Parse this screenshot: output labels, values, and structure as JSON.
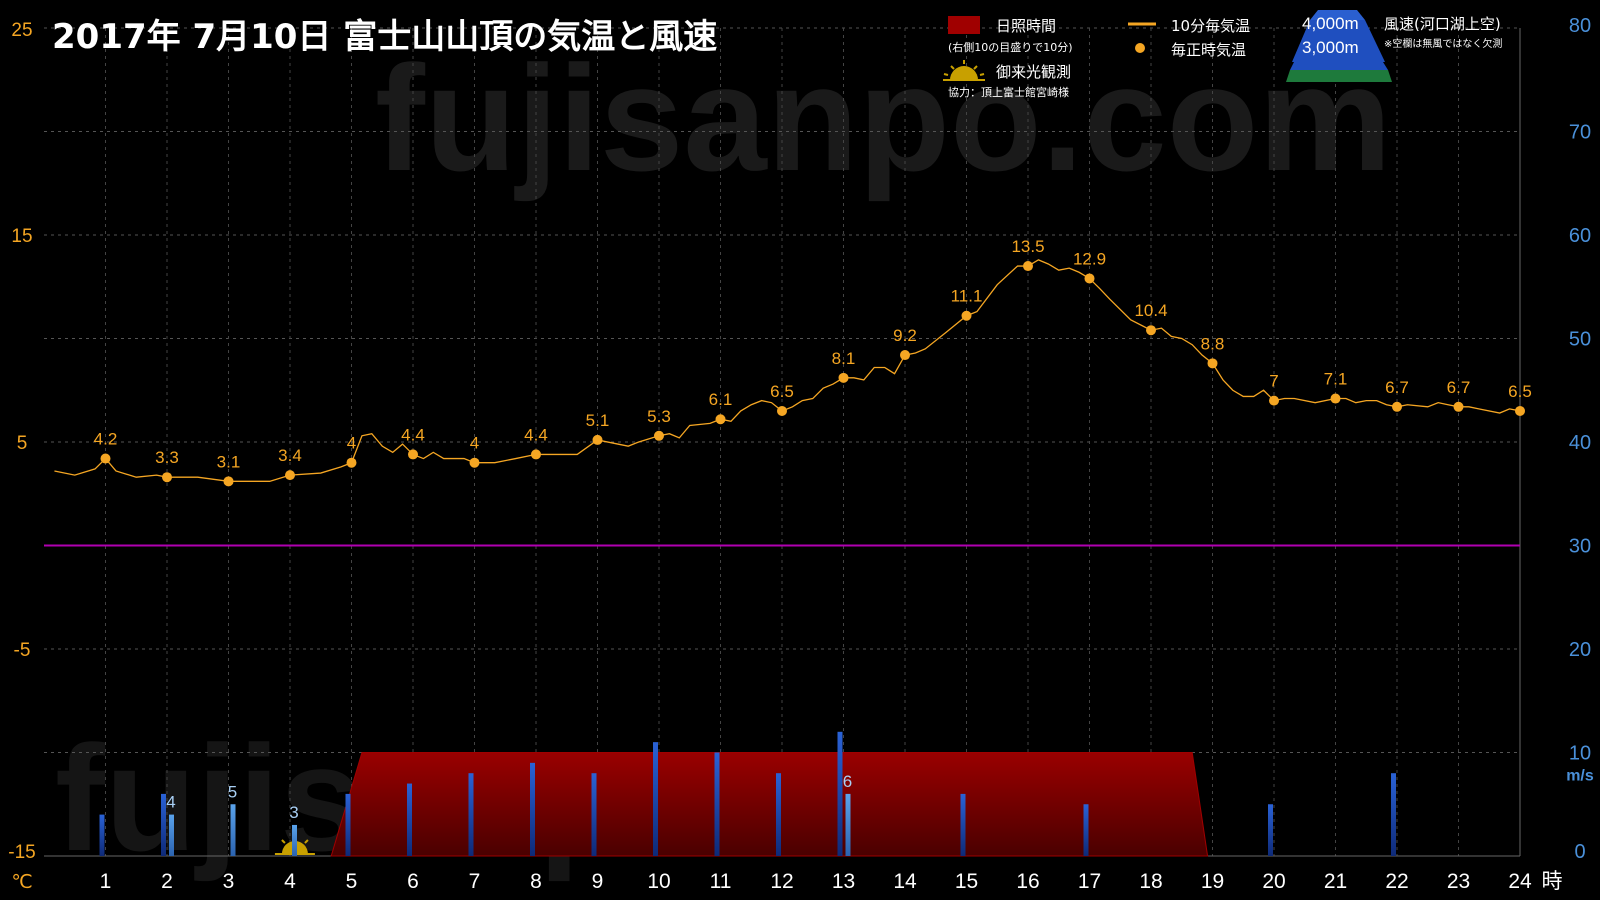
{
  "chart_data": {
    "type": "line",
    "title": "2017年  7月10日   富士山山頂の気温と風速",
    "watermark": "fujisanpo.com",
    "x_unit": "時",
    "x_ticks": [
      "1",
      "2",
      "3",
      "4",
      "5",
      "6",
      "7",
      "8",
      "9",
      "10",
      "11",
      "12",
      "13",
      "14",
      "15",
      "16",
      "17",
      "18",
      "19",
      "20",
      "21",
      "22",
      "23",
      "24"
    ],
    "y_left": {
      "unit": "℃",
      "range": [
        -15,
        25
      ],
      "ticks": [
        "25",
        "15",
        "5",
        "-5",
        "-15"
      ]
    },
    "y_right": {
      "unit": "m/s",
      "range": [
        0,
        80
      ],
      "ticks": [
        "80",
        "70",
        "60",
        "50",
        "40",
        "30",
        "20",
        "10",
        "0"
      ]
    },
    "zero_line": 0,
    "temperature_hourly": {
      "name": "毎正時気温",
      "x": [
        1,
        2,
        3,
        4,
        5,
        6,
        7,
        8,
        9,
        10,
        11,
        12,
        13,
        14,
        15,
        16,
        17,
        18,
        19,
        20,
        21,
        22,
        23,
        24
      ],
      "values": [
        4.2,
        3.3,
        3.1,
        3.4,
        4,
        4.4,
        4,
        4.4,
        5.1,
        5.3,
        6.1,
        6.5,
        8.1,
        9.2,
        11.1,
        13.5,
        12.9,
        10.4,
        8.8,
        7,
        7.1,
        6.7,
        6.7,
        6.5
      ],
      "labels": [
        "4.2",
        "3.3",
        "3.1",
        "3.4",
        "4",
        "4.4",
        "4",
        "4.4",
        "5.1",
        "5.3",
        "6.1",
        "6.5",
        "8.1",
        "9.2",
        "11.1",
        "13.5",
        "12.9",
        "10.4",
        "8.8",
        "7",
        "7.1",
        "6.7",
        "6.7",
        "6.5"
      ]
    },
    "temperature_10min": {
      "name": "10分毎気温",
      "points": [
        [
          0.17,
          3.6
        ],
        [
          0.5,
          3.4
        ],
        [
          0.83,
          3.7
        ],
        [
          1.0,
          4.2
        ],
        [
          1.17,
          3.6
        ],
        [
          1.5,
          3.3
        ],
        [
          1.83,
          3.4
        ],
        [
          2.0,
          3.3
        ],
        [
          2.5,
          3.3
        ],
        [
          3.0,
          3.1
        ],
        [
          3.5,
          3.1
        ],
        [
          3.67,
          3.1
        ],
        [
          4.0,
          3.4
        ],
        [
          4.5,
          3.5
        ],
        [
          4.83,
          3.8
        ],
        [
          5.0,
          4.0
        ],
        [
          5.17,
          5.3
        ],
        [
          5.33,
          5.4
        ],
        [
          5.5,
          4.8
        ],
        [
          5.67,
          4.5
        ],
        [
          5.83,
          4.9
        ],
        [
          6.0,
          4.4
        ],
        [
          6.17,
          4.2
        ],
        [
          6.33,
          4.5
        ],
        [
          6.5,
          4.2
        ],
        [
          6.83,
          4.2
        ],
        [
          7.0,
          4.0
        ],
        [
          7.33,
          4.0
        ],
        [
          7.67,
          4.2
        ],
        [
          8.0,
          4.4
        ],
        [
          8.33,
          4.4
        ],
        [
          8.67,
          4.4
        ],
        [
          9.0,
          5.1
        ],
        [
          9.33,
          4.9
        ],
        [
          9.5,
          4.8
        ],
        [
          9.67,
          5.0
        ],
        [
          10.0,
          5.3
        ],
        [
          10.17,
          5.4
        ],
        [
          10.33,
          5.2
        ],
        [
          10.5,
          5.8
        ],
        [
          10.83,
          5.9
        ],
        [
          11.0,
          6.1
        ],
        [
          11.17,
          6.0
        ],
        [
          11.33,
          6.5
        ],
        [
          11.5,
          6.8
        ],
        [
          11.67,
          7.0
        ],
        [
          11.83,
          6.9
        ],
        [
          12.0,
          6.5
        ],
        [
          12.17,
          6.7
        ],
        [
          12.33,
          7.0
        ],
        [
          12.5,
          7.1
        ],
        [
          12.67,
          7.6
        ],
        [
          12.83,
          7.8
        ],
        [
          13.0,
          8.1
        ],
        [
          13.17,
          8.1
        ],
        [
          13.33,
          8.0
        ],
        [
          13.5,
          8.6
        ],
        [
          13.67,
          8.6
        ],
        [
          13.83,
          8.3
        ],
        [
          14.0,
          9.2
        ],
        [
          14.17,
          9.3
        ],
        [
          14.33,
          9.5
        ],
        [
          14.67,
          10.3
        ],
        [
          15.0,
          11.1
        ],
        [
          15.17,
          11.3
        ],
        [
          15.5,
          12.6
        ],
        [
          15.83,
          13.5
        ],
        [
          16.0,
          13.5
        ],
        [
          16.17,
          13.8
        ],
        [
          16.33,
          13.6
        ],
        [
          16.5,
          13.3
        ],
        [
          16.67,
          13.4
        ],
        [
          16.83,
          13.2
        ],
        [
          17.0,
          12.9
        ],
        [
          17.17,
          12.4
        ],
        [
          17.33,
          11.9
        ],
        [
          17.67,
          10.9
        ],
        [
          18.0,
          10.4
        ],
        [
          18.17,
          10.5
        ],
        [
          18.33,
          10.1
        ],
        [
          18.5,
          10.0
        ],
        [
          18.67,
          9.7
        ],
        [
          18.83,
          9.2
        ],
        [
          19.0,
          8.8
        ],
        [
          19.17,
          8.0
        ],
        [
          19.33,
          7.5
        ],
        [
          19.5,
          7.2
        ],
        [
          19.67,
          7.2
        ],
        [
          19.83,
          7.5
        ],
        [
          20.0,
          7.0
        ],
        [
          20.17,
          7.1
        ],
        [
          20.33,
          7.1
        ],
        [
          20.67,
          6.9
        ],
        [
          21.0,
          7.1
        ],
        [
          21.17,
          7.1
        ],
        [
          21.33,
          6.9
        ],
        [
          21.5,
          7.0
        ],
        [
          21.67,
          7.0
        ],
        [
          21.83,
          6.8
        ],
        [
          22.0,
          6.7
        ],
        [
          22.17,
          6.8
        ],
        [
          22.5,
          6.7
        ],
        [
          22.67,
          6.9
        ],
        [
          22.83,
          6.8
        ],
        [
          23.0,
          6.7
        ],
        [
          23.17,
          6.7
        ],
        [
          23.33,
          6.6
        ],
        [
          23.67,
          6.4
        ],
        [
          23.83,
          6.6
        ],
        [
          24.0,
          6.5
        ]
      ]
    },
    "sunshine": {
      "name": "日照時間",
      "note": "(右側10の目盛りで10分)",
      "points": [
        [
          4.67,
          0
        ],
        [
          5.17,
          10
        ],
        [
          18.67,
          10
        ],
        [
          18.92,
          0
        ]
      ]
    },
    "sunrise": {
      "name": "御来光観測",
      "hour": 4.08
    },
    "wind_4000m": {
      "name": "4,000m",
      "x": [
        1,
        2,
        3,
        4,
        5,
        6,
        7,
        8,
        9,
        10,
        11,
        12,
        13,
        14,
        15,
        16,
        17,
        18,
        19,
        20,
        21,
        22,
        23,
        24
      ],
      "values": [
        4,
        6,
        null,
        null,
        6,
        7,
        8,
        9,
        8,
        11,
        10,
        8,
        12,
        null,
        6,
        null,
        5,
        null,
        null,
        5,
        null,
        8,
        null,
        null
      ]
    },
    "wind_3000m": {
      "name": "3,000m",
      "x": [
        2,
        3,
        4,
        13
      ],
      "values": [
        4,
        5,
        3,
        6
      ],
      "labels": [
        "4",
        "5",
        "3",
        "6"
      ]
    },
    "legend": {
      "sunshine": "日照時間",
      "sunshine_note": "(右側10の目盛りで10分)",
      "sunrise": "御来光観測",
      "credit": "協力：頂上富士館宮崎様",
      "temp_10min": "10分毎気温",
      "temp_hourly": "毎正時気温",
      "wind_title": "風速(河口湖上空)",
      "wind_note": "※空欄は無風ではなく欠測",
      "wind_4000": "4,000m",
      "wind_3000": "3,000m"
    },
    "colors": {
      "temperature": "#f5a623",
      "sunshine": "#8b0000",
      "wind_4000m": "#1f4fbf",
      "wind_3000m": "#4a90d9",
      "zero_line": "#b000b0",
      "left_axis_text": "#f5a623",
      "right_axis_text": "#4a90d9"
    }
  }
}
